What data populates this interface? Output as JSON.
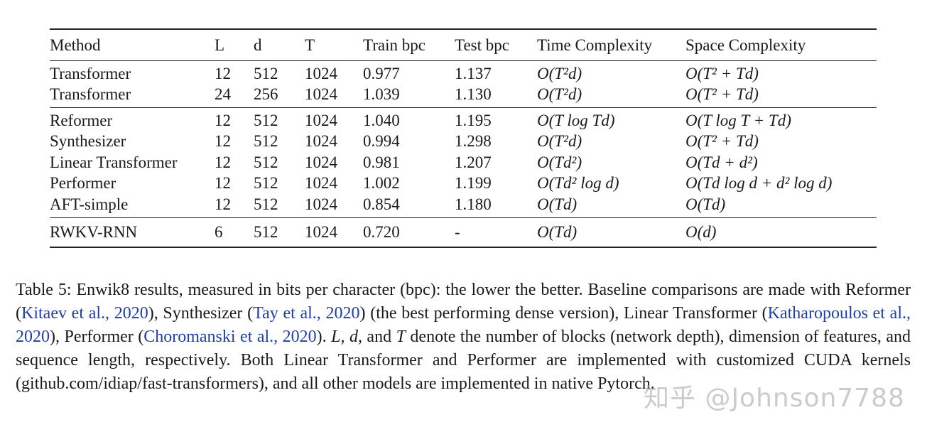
{
  "table": {
    "headers": [
      "Method",
      "L",
      "d",
      "T",
      "Train bpc",
      "Test bpc",
      "Time Complexity",
      "Space Complexity"
    ],
    "groups": [
      [
        {
          "method": "Transformer",
          "L": "12",
          "d": "512",
          "T": "1024",
          "train": "0.977",
          "test": "1.137",
          "time": "O(T²d)",
          "space": "O(T² + Td)"
        },
        {
          "method": "Transformer",
          "L": "24",
          "d": "256",
          "T": "1024",
          "train": "1.039",
          "test": "1.130",
          "time": "O(T²d)",
          "space": "O(T² + Td)"
        }
      ],
      [
        {
          "method": "Reformer",
          "L": "12",
          "d": "512",
          "T": "1024",
          "train": "1.040",
          "test": "1.195",
          "time": "O(T log Td)",
          "space": "O(T log T + Td)"
        },
        {
          "method": "Synthesizer",
          "L": "12",
          "d": "512",
          "T": "1024",
          "train": "0.994",
          "test": "1.298",
          "time": "O(T²d)",
          "space": "O(T² + Td)"
        },
        {
          "method": "Linear Transformer",
          "L": "12",
          "d": "512",
          "T": "1024",
          "train": "0.981",
          "test": "1.207",
          "time": "O(Td²)",
          "space": "O(Td + d²)"
        },
        {
          "method": "Performer",
          "L": "12",
          "d": "512",
          "T": "1024",
          "train": "1.002",
          "test": "1.199",
          "time": "O(Td² log d)",
          "space": "O(Td log d + d² log d)"
        },
        {
          "method": "AFT-simple",
          "L": "12",
          "d": "512",
          "T": "1024",
          "train": "0.854",
          "test": "1.180",
          "time": "O(Td)",
          "space": "O(Td)"
        }
      ],
      [
        {
          "method": "RWKV-RNN",
          "L": "6",
          "d": "512",
          "T": "1024",
          "train": "0.720",
          "test": "-",
          "time": "O(Td)",
          "space": "O(d)"
        }
      ]
    ]
  },
  "caption": {
    "t1": "Table 5: Enwik8 results, measured in bits per character (bpc): the lower the better. Baseline comparisons are made with Reformer (",
    "c1": "Kitaev et al., 2020",
    "t2": "), Synthesizer (",
    "c2": "Tay et al., 2020",
    "t3": ") (the best performing dense version), Linear Transformer (",
    "c3": "Katharopoulos et al., 2020",
    "t4": "), Performer (",
    "c4": "Choromanski et al., 2020",
    "t5": "). ",
    "m1": "L, d,",
    "t6": " and ",
    "m2": "T",
    "t7": " denote the number of blocks (network depth), dimension of features, and sequence length, respectively. Both Linear Transformer and Performer are implemented with customized CUDA kernels (github.com/idiap/fast-transformers), and all other models are implemented in native Pytorch."
  },
  "watermark": "知乎 @Johnson7788"
}
